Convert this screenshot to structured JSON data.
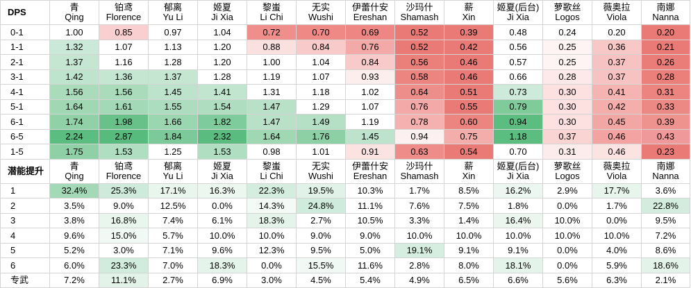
{
  "dps": {
    "header": {
      "corner": "DPS",
      "columns": [
        {
          "cn": "青",
          "en": "Qing"
        },
        {
          "cn": "铂鸢",
          "en": "Florence"
        },
        {
          "cn": "郁离",
          "en": "Yu Li"
        },
        {
          "cn": "姬夏",
          "en": "Ji Xia"
        },
        {
          "cn": "黎蚩",
          "en": "Li Chi"
        },
        {
          "cn": "无实",
          "en": "Wushi"
        },
        {
          "cn": "伊蕾什安",
          "en": "Ereshan"
        },
        {
          "cn": "沙玛什",
          "en": "Shamash"
        },
        {
          "cn": "薪",
          "en": "Xin"
        },
        {
          "cn": "姬夏(后台)",
          "en": "Ji Xia"
        },
        {
          "cn": "萝歌丝",
          "en": "Logos"
        },
        {
          "cn": "薇奥拉",
          "en": "Viola"
        },
        {
          "cn": "南娜",
          "en": "Nanna"
        }
      ]
    },
    "rows": [
      {
        "label": "0-1",
        "values": [
          "1.00",
          "0.85",
          "0.97",
          "1.04",
          "0.72",
          "0.70",
          "0.69",
          "0.52",
          "0.39",
          "0.48",
          "0.24",
          "0.20",
          "0.20"
        ],
        "colors": [
          "#ffffff",
          "#f9cfcf",
          "#ffffff",
          "#ffffff",
          "#ef8e8a",
          "#ee8986",
          "#ee8683",
          "#e97a75",
          "#e97a75",
          "#ffffff",
          "#ffffff",
          "#ffffff",
          "#e97a75"
        ]
      },
      {
        "label": "1-1",
        "values": [
          "1.32",
          "1.07",
          "1.13",
          "1.20",
          "0.88",
          "0.84",
          "0.76",
          "0.52",
          "0.42",
          "0.56",
          "0.25",
          "0.36",
          "0.21"
        ],
        "colors": [
          "#cbe9d8",
          "#ffffff",
          "#ffffff",
          "#ffffff",
          "#fbe0e0",
          "#f8cac9",
          "#f2a9a7",
          "#e97a75",
          "#e97a75",
          "#ffffff",
          "#fef4f4",
          "#f8c8c7",
          "#e97a75"
        ]
      },
      {
        "label": "2-1",
        "values": [
          "1.37",
          "1.16",
          "1.28",
          "1.20",
          "1.00",
          "1.04",
          "0.84",
          "0.56",
          "0.46",
          "0.57",
          "0.25",
          "0.37",
          "0.26"
        ],
        "colors": [
          "#c5e7d2",
          "#ffffff",
          "#ffffff",
          "#ffffff",
          "#ffffff",
          "#ffffff",
          "#f8cac9",
          "#eb807b",
          "#e97a75",
          "#ffffff",
          "#fef4f4",
          "#f7c3c2",
          "#ea7d78"
        ]
      },
      {
        "label": "3-1",
        "values": [
          "1.42",
          "1.36",
          "1.37",
          "1.28",
          "1.19",
          "1.07",
          "0.93",
          "0.58",
          "0.46",
          "0.66",
          "0.28",
          "0.37",
          "0.28"
        ],
        "colors": [
          "#bfe4cd",
          "#c5e7d2",
          "#c5e7d2",
          "#ffffff",
          "#ffffff",
          "#ffffff",
          "#fdeeee",
          "#ec847f",
          "#e97a75",
          "#ffffff",
          "#fde9e9",
          "#f7c3c2",
          "#eb807b"
        ]
      },
      {
        "label": "4-1",
        "values": [
          "1.56",
          "1.56",
          "1.45",
          "1.41",
          "1.31",
          "1.18",
          "1.02",
          "0.64",
          "0.51",
          "0.73",
          "0.30",
          "0.41",
          "0.31"
        ],
        "colors": [
          "#aadcbc",
          "#aadcbc",
          "#bde3cc",
          "#c1e5cf",
          "#ffffff",
          "#ffffff",
          "#ffffff",
          "#ee8e8a",
          "#e97a75",
          "#cdeada",
          "#fde1e1",
          "#f5b4b2",
          "#ec8580"
        ]
      },
      {
        "label": "5-1",
        "values": [
          "1.64",
          "1.61",
          "1.55",
          "1.54",
          "1.47",
          "1.29",
          "1.07",
          "0.76",
          "0.55",
          "0.79",
          "0.30",
          "0.42",
          "0.33"
        ],
        "colors": [
          "#a0d8b4",
          "#a4d9b7",
          "#acddbe",
          "#aedebf",
          "#b8e1c7",
          "#ffffff",
          "#ffffff",
          "#f2a9a7",
          "#e97a75",
          "#7fcb9a",
          "#fde1e1",
          "#f4afad",
          "#ed8985"
        ]
      },
      {
        "label": "6-1",
        "values": [
          "1.74",
          "1.98",
          "1.66",
          "1.82",
          "1.47",
          "1.49",
          "1.19",
          "0.78",
          "0.60",
          "0.94",
          "0.30",
          "0.45",
          "0.39"
        ],
        "colors": [
          "#90d1a7",
          "#69c18a",
          "#9ad6b0",
          "#7ecb9b",
          "#b8e1c7",
          "#b5e0c5",
          "#ffffff",
          "#f4b1af",
          "#ec847f",
          "#5bbd80",
          "#fde1e1",
          "#f3a7a5",
          "#ef938f"
        ]
      },
      {
        "label": "6-5",
        "values": [
          "2.24",
          "2.87",
          "1.84",
          "2.32",
          "1.64",
          "1.76",
          "1.45",
          "0.94",
          "0.75",
          "1.18",
          "0.37",
          "0.46",
          "0.43"
        ],
        "colors": [
          "#5bbd80",
          "#57bb7d",
          "#7cca99",
          "#5abc7f",
          "#a0d8b4",
          "#8ed0a5",
          "#bde3cc",
          "#fdf0f0",
          "#f3aeab",
          "#5bbd80",
          "#f9d4d3",
          "#f3a4a2",
          "#f0999a"
        ]
      },
      {
        "label": "1-5",
        "values": [
          "1.75",
          "1.53",
          "1.25",
          "1.53",
          "0.98",
          "1.01",
          "0.91",
          "0.63",
          "0.54",
          "0.70",
          "0.31",
          "0.46",
          "0.23"
        ],
        "colors": [
          "#8fd0a6",
          "#afdec0",
          "#ffffff",
          "#afdec0",
          "#ffffff",
          "#ffffff",
          "#fbe3e2",
          "#ed8c88",
          "#e97a75",
          "#ffffff",
          "#fdecec",
          "#fbe3e2",
          "#e97a75"
        ]
      }
    ]
  },
  "potential": {
    "header": {
      "corner": "潜能提升",
      "columns": [
        {
          "cn": "青",
          "en": "Qing"
        },
        {
          "cn": "铂鸢",
          "en": "Florence"
        },
        {
          "cn": "郁离",
          "en": "Yu Li"
        },
        {
          "cn": "姬夏",
          "en": "Ji Xia"
        },
        {
          "cn": "黎蚩",
          "en": "Li Chi"
        },
        {
          "cn": "无实",
          "en": "Wushi"
        },
        {
          "cn": "伊蕾什安",
          "en": "Ereshan"
        },
        {
          "cn": "沙玛什",
          "en": "Shamash"
        },
        {
          "cn": "薪",
          "en": "Xin"
        },
        {
          "cn": "姬夏(后台)",
          "en": "Ji Xia"
        },
        {
          "cn": "萝歌丝",
          "en": "Logos"
        },
        {
          "cn": "薇奥拉",
          "en": "Viola"
        },
        {
          "cn": "南娜",
          "en": "Nanna"
        }
      ]
    },
    "rows": [
      {
        "label": "1",
        "values": [
          "32.4%",
          "25.3%",
          "17.1%",
          "16.3%",
          "22.3%",
          "19.5%",
          "10.3%",
          "1.7%",
          "8.5%",
          "16.2%",
          "2.9%",
          "17.7%",
          "3.6%"
        ],
        "colors": [
          "#a4d9b7",
          "#cdeada",
          "#e9f6ee",
          "#ecf7f0",
          "#d5eddf",
          "#e1f2e8",
          "#ffffff",
          "#ffffff",
          "#ffffff",
          "#edf7f1",
          "#ffffff",
          "#e7f5ec",
          "#ffffff"
        ]
      },
      {
        "label": "2",
        "values": [
          "3.5%",
          "9.0%",
          "12.5%",
          "0.0%",
          "14.3%",
          "24.8%",
          "11.1%",
          "7.6%",
          "7.5%",
          "1.8%",
          "0.0%",
          "1.7%",
          "22.8%"
        ],
        "colors": [
          "#ffffff",
          "#ffffff",
          "#ffffff",
          "#ffffff",
          "#f4faf6",
          "#cfebdb",
          "#ffffff",
          "#ffffff",
          "#ffffff",
          "#ffffff",
          "#ffffff",
          "#ffffff",
          "#d3ecdd"
        ]
      },
      {
        "label": "3",
        "values": [
          "3.8%",
          "16.8%",
          "7.4%",
          "6.1%",
          "18.3%",
          "2.7%",
          "10.5%",
          "3.3%",
          "1.4%",
          "16.4%",
          "10.0%",
          "0.0%",
          "9.5%"
        ],
        "colors": [
          "#ffffff",
          "#e9f6ee",
          "#ffffff",
          "#ffffff",
          "#e5f4eb",
          "#ffffff",
          "#ffffff",
          "#ffffff",
          "#ffffff",
          "#ebf6ef",
          "#ffffff",
          "#ffffff",
          "#ffffff"
        ]
      },
      {
        "label": "4",
        "values": [
          "9.6%",
          "15.0%",
          "5.7%",
          "10.0%",
          "10.0%",
          "9.0%",
          "9.0%",
          "10.0%",
          "10.0%",
          "10.0%",
          "10.0%",
          "10.0%",
          "7.2%"
        ],
        "colors": [
          "#ffffff",
          "#f1f9f4",
          "#ffffff",
          "#ffffff",
          "#ffffff",
          "#ffffff",
          "#ffffff",
          "#ffffff",
          "#ffffff",
          "#ffffff",
          "#ffffff",
          "#ffffff",
          "#ffffff"
        ]
      },
      {
        "label": "5",
        "values": [
          "5.2%",
          "3.0%",
          "7.1%",
          "9.6%",
          "12.3%",
          "9.5%",
          "5.0%",
          "19.1%",
          "9.1%",
          "9.1%",
          "0.0%",
          "4.0%",
          "8.6%"
        ],
        "colors": [
          "#ffffff",
          "#ffffff",
          "#ffffff",
          "#ffffff",
          "#ffffff",
          "#ffffff",
          "#ffffff",
          "#d6eee0",
          "#ffffff",
          "#ffffff",
          "#ffffff",
          "#ffffff",
          "#ffffff"
        ]
      },
      {
        "label": "6",
        "values": [
          "6.0%",
          "23.3%",
          "7.0%",
          "18.3%",
          "0.0%",
          "15.5%",
          "11.6%",
          "2.8%",
          "8.0%",
          "18.1%",
          "0.0%",
          "5.9%",
          "18.6%"
        ],
        "colors": [
          "#ffffff",
          "#d1ecdc",
          "#ffffff",
          "#e5f4eb",
          "#ffffff",
          "#f0f9f3",
          "#ffffff",
          "#ffffff",
          "#ffffff",
          "#e5f4eb",
          "#ffffff",
          "#ffffff",
          "#e4f3ea"
        ]
      },
      {
        "label": "专武",
        "values": [
          "7.2%",
          "11.1%",
          "2.7%",
          "6.9%",
          "3.0%",
          "4.5%",
          "5.4%",
          "4.9%",
          "6.5%",
          "6.6%",
          "5.6%",
          "6.3%",
          "2.1%"
        ],
        "colors": [
          "#ffffff",
          "#e3f3e9",
          "#ffffff",
          "#ffffff",
          "#ffffff",
          "#ffffff",
          "#ffffff",
          "#ffffff",
          "#ffffff",
          "#ffffff",
          "#ffffff",
          "#ffffff",
          "#ffffff"
        ]
      }
    ]
  }
}
